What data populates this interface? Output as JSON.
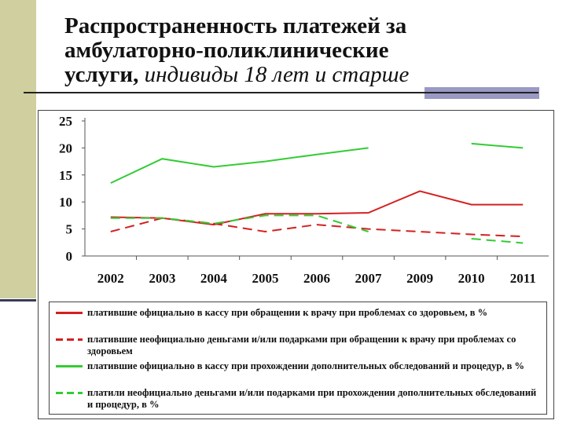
{
  "title": {
    "line1": "Распространенность платежей за",
    "line2": "амбулаторно-поликлинические",
    "line3_regular": "услуги,",
    "line3_italic": " индивиды 18 лет и старше"
  },
  "colors": {
    "red": "#d42020",
    "green": "#33cc33",
    "sidebar": "#cfcf9f",
    "accent": "#9a99c4"
  },
  "chart_data": {
    "type": "line",
    "categories": [
      "2002",
      "2003",
      "2004",
      "2005",
      "2006",
      "2007",
      "2009",
      "2010",
      "2011"
    ],
    "ylim": [
      0,
      25
    ],
    "yticks": [
      "0",
      "5",
      "10",
      "15",
      "20",
      "25"
    ],
    "series": [
      {
        "name": "платившие официально в кассу при обращении к врачу при проблемах со здоровьем, в %",
        "color": "#d42020",
        "dash": "solid",
        "values": [
          7.2,
          7.0,
          5.8,
          7.8,
          7.8,
          8.0,
          12.0,
          9.5,
          9.5
        ]
      },
      {
        "name": "платившие неофициально деньгами и/или подарками при обращении к врачу при проблемах со здоровьем",
        "color": "#d42020",
        "dash": "dashed",
        "values": [
          4.5,
          7.0,
          6.0,
          4.5,
          5.8,
          5.0,
          4.5,
          4.0,
          3.6
        ]
      },
      {
        "name": "платившие официально в кассу при прохождении дополнительных обследований и процедур, в %",
        "color": "#33cc33",
        "dash": "solid",
        "values": [
          13.5,
          18.0,
          16.5,
          17.5,
          18.8,
          20.0,
          null,
          20.8,
          20.0
        ]
      },
      {
        "name": "платили неофициально деньгами и/или подарками при прохождении дополнительных обследований и процедур, в %",
        "color": "#33cc33",
        "dash": "dashed",
        "values": [
          7.0,
          7.0,
          6.0,
          7.5,
          7.5,
          4.5,
          null,
          3.2,
          2.4
        ]
      }
    ],
    "legend_position": "bottom",
    "grid": false
  }
}
